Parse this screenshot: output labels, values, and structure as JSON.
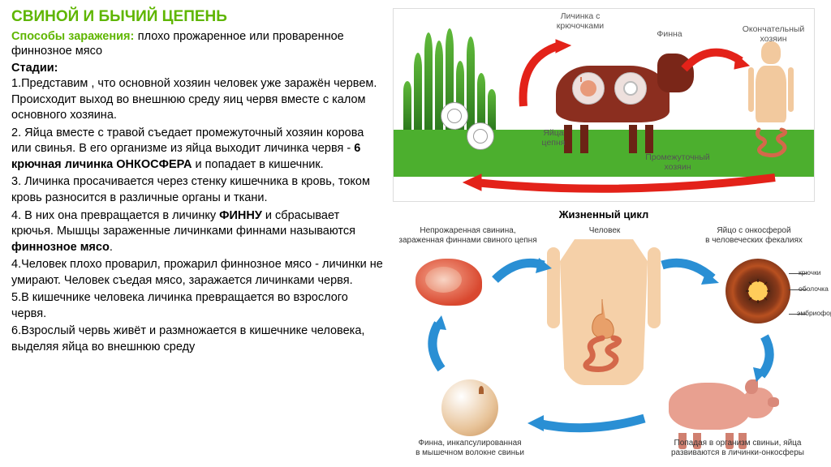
{
  "title": "СВИНОЙ И БЫЧИЙ ЦЕПЕНЬ",
  "title_color": "#5fb600",
  "infection": {
    "label": "Способы заражения:",
    "label_color": "#5fb600",
    "text": " плохо прожаренное или проваренное финнозное мясо"
  },
  "stages_label": "Стадии:",
  "stages": [
    "1.Представим , что основной хозяин человек уже заражён червем. Происходит выход во внешнюю среду яиц червя вместе с калом основного хозяина.",
    "2. Яйца вместе с травой съедает промежуточный хозяин корова или свинья. В его организме из яйца выходит личинка червя - ",
    "3. Личинка просачивается через стенку кишечника в кровь, током кровь разносится в различные органы и ткани.",
    "4. В них она превращается в личинку ",
    "4.Человек плохо проварил, прожарил финнозное мясо - личинки не умирают. Человек съедая мясо, заражается личинками червя.",
    "5.В кишечнике человека личинка превращается во взрослого червя.",
    "6.Взрослый червь живёт и размножается в кишечнике человека, выделяя яйца во внешнюю среду"
  ],
  "stage2_bold": "6 крючная личинка  ОНКОСФЕРА",
  "stage2_tail": " и попадает в кишечник.",
  "stage4_bold1": "ФИННУ",
  "stage4_mid": " и сбрасывает крючья.  Мышцы зараженные личинками финнами называются ",
  "stage4_bold2": "финнозное мясо",
  "stage4_tail": ".",
  "top_diagram": {
    "labels": {
      "larva_hooks": "Личинка с\nкрючочками",
      "finna": "Финна",
      "final_host": "Окончательный\nхозяин",
      "eggs": "Яйца\nцепня",
      "intermediate": "Промежуточный\nхозяин"
    },
    "colors": {
      "arrow": "#e32219",
      "grass": "#4caf2e",
      "cow": "#8b2e1f",
      "skin": "#f2c99e"
    }
  },
  "bottom_diagram": {
    "title": "Жизненный цикл",
    "labels": {
      "meat": "Непрожаренная свинина,\nзараженная финнами свиного цепня",
      "human": "Человек",
      "egg": "Яйцо с онкосферой\nв человеческих фекалиях",
      "egg_parts": {
        "hooks": "крючки",
        "shell": "оболочка",
        "embryo": "эмбриофор"
      },
      "pig": "Попадая в организм свиньи, яйца\nразвиваются в личинки-онкосферы",
      "finna": "Финна, инкапсулированная\nв мышечном волокне свиньи"
    },
    "colors": {
      "arrow": "#2a8fd4",
      "skin": "#f5d0a8",
      "pig": "#e8a090",
      "egg_dark": "#2a1810",
      "finna": "#e8c49a"
    }
  }
}
